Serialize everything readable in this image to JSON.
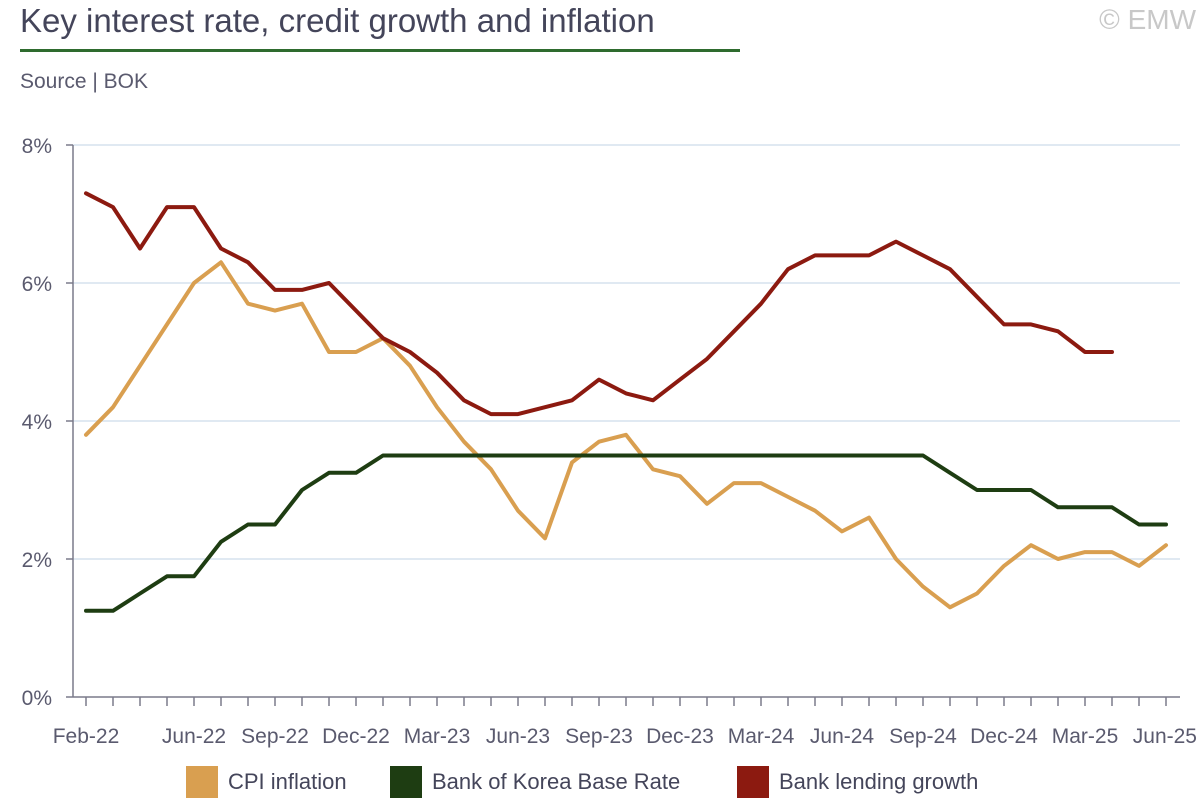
{
  "header": {
    "title": "Key interest rate, credit growth and inflation",
    "subtitle": "Source | BOK",
    "copyright": "© EMW"
  },
  "colors": {
    "title_rule": "#2e6b2e",
    "grid": "#d6e2ee",
    "axis": "#7a7a8a"
  },
  "chart_data": {
    "type": "line",
    "title": "Key interest rate, credit growth and inflation",
    "xlabel": "",
    "ylabel": "",
    "ylim": [
      0,
      8
    ],
    "yticks": [
      "0%",
      "2%",
      "4%",
      "6%",
      "8%"
    ],
    "xtick_labels": [
      "Feb-22",
      "Jun-22",
      "Sep-22",
      "Dec-22",
      "Mar-23",
      "Jun-23",
      "Sep-23",
      "Dec-23",
      "Mar-24",
      "Jun-24",
      "Sep-24",
      "Dec-24",
      "Mar-25",
      "Jun-25"
    ],
    "x": [
      "Feb-22",
      "Mar-22",
      "Apr-22",
      "May-22",
      "Jun-22",
      "Jul-22",
      "Aug-22",
      "Sep-22",
      "Oct-22",
      "Nov-22",
      "Dec-22",
      "Jan-23",
      "Feb-23",
      "Mar-23",
      "Apr-23",
      "May-23",
      "Jun-23",
      "Jul-23",
      "Aug-23",
      "Sep-23",
      "Oct-23",
      "Nov-23",
      "Dec-23",
      "Jan-24",
      "Feb-24",
      "Mar-24",
      "Apr-24",
      "May-24",
      "Jun-24",
      "Jul-24",
      "Aug-24",
      "Sep-24",
      "Oct-24",
      "Nov-24",
      "Dec-24",
      "Jan-25",
      "Feb-25",
      "Mar-25",
      "Apr-25",
      "May-25",
      "Jun-25"
    ],
    "grid": true,
    "legend_position": "bottom",
    "series": [
      {
        "name": "CPI inflation",
        "color": "#d99f50",
        "values": [
          3.8,
          4.2,
          4.8,
          5.4,
          6.0,
          6.3,
          5.7,
          5.6,
          5.7,
          5.0,
          5.0,
          5.2,
          4.8,
          4.2,
          3.7,
          3.3,
          2.7,
          2.3,
          3.4,
          3.7,
          3.8,
          3.3,
          3.2,
          2.8,
          3.1,
          3.1,
          2.9,
          2.7,
          2.4,
          2.6,
          2.0,
          1.6,
          1.3,
          1.5,
          1.9,
          2.2,
          2.0,
          2.1,
          2.1,
          1.9,
          2.2
        ]
      },
      {
        "name": "Bank of Korea Base Rate",
        "color": "#1e3d12",
        "values": [
          1.25,
          1.25,
          1.5,
          1.75,
          1.75,
          2.25,
          2.5,
          2.5,
          3.0,
          3.25,
          3.25,
          3.5,
          3.5,
          3.5,
          3.5,
          3.5,
          3.5,
          3.5,
          3.5,
          3.5,
          3.5,
          3.5,
          3.5,
          3.5,
          3.5,
          3.5,
          3.5,
          3.5,
          3.5,
          3.5,
          3.5,
          3.5,
          3.25,
          3.0,
          3.0,
          3.0,
          2.75,
          2.75,
          2.75,
          2.5,
          2.5
        ]
      },
      {
        "name": "Bank lending growth",
        "color": "#8c1a10",
        "values": [
          7.3,
          7.1,
          6.5,
          7.1,
          7.1,
          6.5,
          6.3,
          5.9,
          5.9,
          6.0,
          5.6,
          5.2,
          5.0,
          4.7,
          4.3,
          4.1,
          4.1,
          4.2,
          4.3,
          4.6,
          4.4,
          4.3,
          4.6,
          4.9,
          5.3,
          5.7,
          6.2,
          6.4,
          6.4,
          6.4,
          6.6,
          6.4,
          6.2,
          5.8,
          5.4,
          5.4,
          5.3,
          5.0,
          5.0,
          null,
          null
        ]
      }
    ]
  }
}
